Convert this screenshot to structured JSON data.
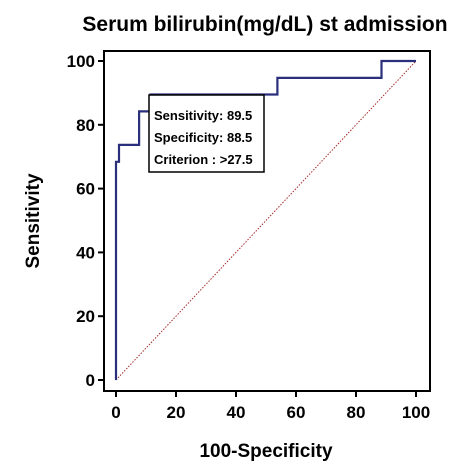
{
  "chart_data": {
    "type": "line",
    "title": "Serum bilirubin(mg/dL) st admission",
    "xlabel": "100-Specificity",
    "ylabel": "Sensitivity",
    "xlim": [
      0,
      100
    ],
    "ylim": [
      0,
      100
    ],
    "x_ticks": [
      0,
      20,
      40,
      60,
      80,
      100
    ],
    "y_ticks": [
      0,
      20,
      40,
      60,
      80,
      100
    ],
    "grid": false,
    "series": [
      {
        "name": "",
        "color": "#2a2f7c",
        "points": [
          [
            0,
            0
          ],
          [
            0,
            68.4
          ],
          [
            1,
            68.4
          ],
          [
            1,
            73.7
          ],
          [
            7.7,
            73.7
          ],
          [
            7.7,
            84.2
          ],
          [
            11.5,
            84.2
          ],
          [
            11.5,
            89.5
          ],
          [
            53.8,
            89.5
          ],
          [
            53.8,
            94.7
          ],
          [
            88.5,
            94.7
          ],
          [
            88.5,
            100
          ],
          [
            100,
            100
          ]
        ]
      },
      {
        "name": "",
        "color": "#a52a2a",
        "style": "dotted",
        "points": [
          [
            0,
            0
          ],
          [
            100,
            100
          ]
        ]
      }
    ],
    "annotation": {
      "lines": [
        "Sensitivity: 89.5",
        "Specificity: 88.5",
        "Criterion : >27.5"
      ]
    }
  }
}
